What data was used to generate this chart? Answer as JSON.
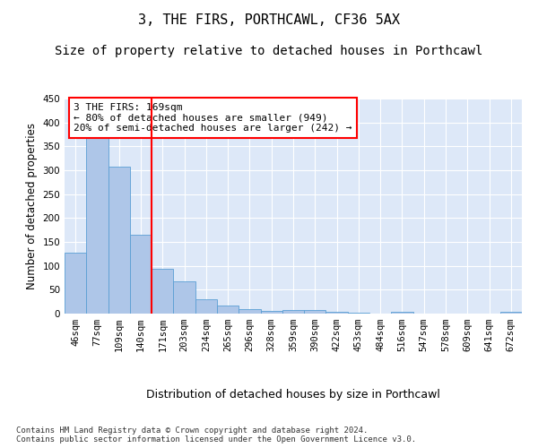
{
  "title": "3, THE FIRS, PORTHCAWL, CF36 5AX",
  "subtitle": "Size of property relative to detached houses in Porthcawl",
  "xlabel": "Distribution of detached houses by size in Porthcawl",
  "ylabel": "Number of detached properties",
  "bar_labels": [
    "46sqm",
    "77sqm",
    "109sqm",
    "140sqm",
    "171sqm",
    "203sqm",
    "234sqm",
    "265sqm",
    "296sqm",
    "328sqm",
    "359sqm",
    "390sqm",
    "422sqm",
    "453sqm",
    "484sqm",
    "516sqm",
    "547sqm",
    "578sqm",
    "609sqm",
    "641sqm",
    "672sqm"
  ],
  "bar_values": [
    127,
    367,
    307,
    165,
    93,
    68,
    30,
    17,
    9,
    6,
    8,
    8,
    4,
    1,
    0,
    3,
    0,
    0,
    0,
    0,
    3
  ],
  "bar_color": "#aec6e8",
  "bar_edgecolor": "#5a9fd4",
  "vline_x_index": 4,
  "vline_color": "red",
  "annotation_text": "3 THE FIRS: 169sqm\n← 80% of detached houses are smaller (949)\n20% of semi-detached houses are larger (242) →",
  "annotation_box_color": "white",
  "annotation_box_edgecolor": "red",
  "ylim": [
    0,
    450
  ],
  "yticks": [
    0,
    50,
    100,
    150,
    200,
    250,
    300,
    350,
    400,
    450
  ],
  "background_color": "#dde8f8",
  "footer_text": "Contains HM Land Registry data © Crown copyright and database right 2024.\nContains public sector information licensed under the Open Government Licence v3.0.",
  "title_fontsize": 11,
  "subtitle_fontsize": 10,
  "xlabel_fontsize": 9,
  "ylabel_fontsize": 8.5,
  "tick_fontsize": 7.5,
  "annotation_fontsize": 8,
  "footer_fontsize": 6.5
}
